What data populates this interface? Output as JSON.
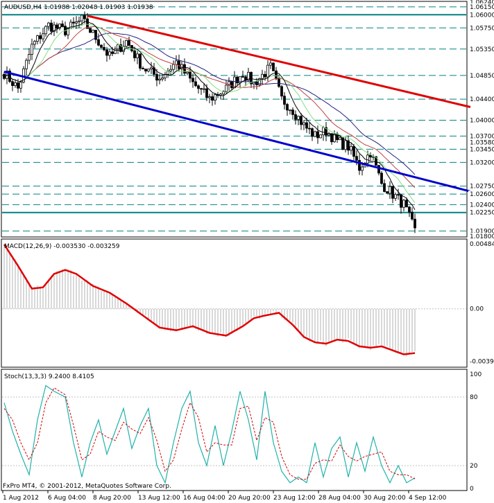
{
  "window": {
    "symbol_header": "AUDUSD,H4  1.01988 1.02048 1.01903 1.01938",
    "copyright": "FxPro MT4, © 2001-2012, MetaQuotes Software Corp."
  },
  "panels": {
    "macd_header": "MACD(12,26,9) -0.003530 -0.003259",
    "stoch_header": "Stoch(13,3,3) 9.2400 8.4105"
  },
  "colors": {
    "background": "#ffffff",
    "candles": "#000000",
    "level_lines": "#008080",
    "resistance_trendline": "#e00000",
    "support_trendline": "#0000cc",
    "macd_signal": "#e00000",
    "macd_histogram": "#b0b0b0",
    "stoch_main": "#20b2aa",
    "stoch_signal": "#d00000",
    "ma_black": "#000000",
    "ma_green": "#80e080",
    "ma_red": "#c04040",
    "ma_blue": "#202080"
  },
  "chart_data": [
    {
      "type": "candlestick",
      "symbol": "AUDUSD",
      "timeframe": "H4",
      "ylim": [
        1.018,
        1.0624
      ],
      "price_ticks": [
        "1.06240",
        "1.06150",
        "1.06000",
        "1.05750",
        "1.05350",
        "1.04850",
        "1.04400",
        "1.04000",
        "1.03700",
        "1.03580",
        "1.03450",
        "1.03200",
        "1.02750",
        "1.02600",
        "1.02400",
        "1.02250",
        "1.01900",
        "1.01800"
      ],
      "horizontal_levels": [
        1.0615,
        1.06,
        1.0575,
        1.0535,
        1.0485,
        1.044,
        1.04,
        1.037,
        1.0345,
        1.032,
        1.0275,
        1.026,
        1.024,
        1.0225,
        1.019
      ],
      "solid_levels": [
        1.06,
        1.0225
      ],
      "time_labels": [
        "1 Aug 2012",
        "6 Aug 04:00",
        "8 Aug 20:00",
        "13 Aug 12:00",
        "16 Aug 04:00",
        "20 Aug 20:00",
        "23 Aug 12:00",
        "28 Aug 04:00",
        "30 Aug 20:00",
        "4 Sep 12:00"
      ],
      "close_anchors": [
        [
          0,
          1.049
        ],
        [
          5,
          1.046
        ],
        [
          10,
          1.054
        ],
        [
          16,
          1.058
        ],
        [
          22,
          1.057
        ],
        [
          28,
          1.059
        ],
        [
          34,
          1.055
        ],
        [
          38,
          1.052
        ],
        [
          44,
          1.055
        ],
        [
          50,
          1.05
        ],
        [
          56,
          1.048
        ],
        [
          62,
          1.051
        ],
        [
          68,
          1.047
        ],
        [
          74,
          1.044
        ],
        [
          80,
          1.046
        ],
        [
          86,
          1.049
        ],
        [
          90,
          1.047
        ],
        [
          96,
          1.05
        ],
        [
          100,
          1.044
        ],
        [
          104,
          1.042
        ],
        [
          108,
          1.039
        ],
        [
          112,
          1.037
        ],
        [
          116,
          1.038
        ],
        [
          120,
          1.036
        ],
        [
          124,
          1.035
        ],
        [
          128,
          1.031
        ],
        [
          132,
          1.034
        ],
        [
          136,
          1.028
        ],
        [
          140,
          1.026
        ],
        [
          144,
          1.024
        ],
        [
          148,
          1.019
        ]
      ],
      "trendlines": [
        {
          "name": "resistance",
          "from": [
            30,
            1.0598
          ],
          "to": [
            168,
            1.0425
          ]
        },
        {
          "name": "support",
          "from": [
            0,
            1.0492
          ],
          "to": [
            168,
            1.0265
          ]
        }
      ]
    },
    {
      "type": "line",
      "title": "MACD(12,26,9)",
      "values_shown": [
        -0.00353,
        -0.003259
      ],
      "ylim": [
        -0.0042,
        0.00484
      ],
      "y_ticks": [
        "0.00484",
        "0.00",
        "-0.00392"
      ],
      "signal_anchors": [
        [
          0,
          0.0048
        ],
        [
          5,
          0.0032
        ],
        [
          10,
          0.0015
        ],
        [
          14,
          0.0016
        ],
        [
          18,
          0.0026
        ],
        [
          22,
          0.0029
        ],
        [
          26,
          0.0026
        ],
        [
          32,
          0.0017
        ],
        [
          38,
          0.0012
        ],
        [
          44,
          0.0004
        ],
        [
          50,
          -0.0005
        ],
        [
          56,
          -0.0014
        ],
        [
          62,
          -0.0016
        ],
        [
          68,
          -0.0013
        ],
        [
          74,
          -0.0018
        ],
        [
          80,
          -0.002
        ],
        [
          86,
          -0.0013
        ],
        [
          90,
          -0.0007
        ],
        [
          94,
          -0.0005
        ],
        [
          99,
          -0.0003
        ],
        [
          104,
          -0.0012
        ],
        [
          108,
          -0.0021
        ],
        [
          112,
          -0.0025
        ],
        [
          116,
          -0.0026
        ],
        [
          120,
          -0.0023
        ],
        [
          124,
          -0.0024
        ],
        [
          128,
          -0.0028
        ],
        [
          132,
          -0.0029
        ],
        [
          136,
          -0.0028
        ],
        [
          140,
          -0.0031
        ],
        [
          144,
          -0.0034
        ],
        [
          148,
          -0.0033
        ]
      ]
    },
    {
      "type": "line",
      "title": "Stoch(13,3,3)",
      "values_shown": [
        9.24,
        8.4105
      ],
      "ylim": [
        0,
        100
      ],
      "y_ticks": [
        "100",
        "80",
        "20",
        "0"
      ],
      "k_anchors": [
        [
          0,
          75
        ],
        [
          3,
          50
        ],
        [
          6,
          30
        ],
        [
          9,
          12
        ],
        [
          12,
          60
        ],
        [
          15,
          90
        ],
        [
          18,
          85
        ],
        [
          22,
          80
        ],
        [
          25,
          40
        ],
        [
          28,
          10
        ],
        [
          31,
          40
        ],
        [
          34,
          60
        ],
        [
          37,
          30
        ],
        [
          40,
          50
        ],
        [
          43,
          70
        ],
        [
          46,
          35
        ],
        [
          49,
          55
        ],
        [
          52,
          70
        ],
        [
          55,
          20
        ],
        [
          58,
          5
        ],
        [
          61,
          40
        ],
        [
          64,
          70
        ],
        [
          67,
          85
        ],
        [
          70,
          40
        ],
        [
          73,
          20
        ],
        [
          76,
          55
        ],
        [
          79,
          20
        ],
        [
          82,
          50
        ],
        [
          85,
          85
        ],
        [
          88,
          60
        ],
        [
          91,
          25
        ],
        [
          94,
          85
        ],
        [
          97,
          40
        ],
        [
          100,
          15
        ],
        [
          103,
          5
        ],
        [
          106,
          10
        ],
        [
          109,
          5
        ],
        [
          112,
          40
        ],
        [
          115,
          10
        ],
        [
          118,
          35
        ],
        [
          121,
          45
        ],
        [
          124,
          10
        ],
        [
          127,
          40
        ],
        [
          130,
          15
        ],
        [
          133,
          45
        ],
        [
          136,
          20
        ],
        [
          139,
          5
        ],
        [
          142,
          20
        ],
        [
          145,
          5
        ],
        [
          148,
          9.24
        ]
      ],
      "d_anchors": [
        [
          0,
          70
        ],
        [
          3,
          60
        ],
        [
          6,
          40
        ],
        [
          9,
          25
        ],
        [
          12,
          40
        ],
        [
          15,
          75
        ],
        [
          18,
          88
        ],
        [
          22,
          82
        ],
        [
          25,
          55
        ],
        [
          28,
          25
        ],
        [
          31,
          30
        ],
        [
          34,
          50
        ],
        [
          37,
          45
        ],
        [
          40,
          42
        ],
        [
          43,
          58
        ],
        [
          46,
          52
        ],
        [
          49,
          48
        ],
        [
          52,
          62
        ],
        [
          55,
          42
        ],
        [
          58,
          15
        ],
        [
          61,
          25
        ],
        [
          64,
          52
        ],
        [
          67,
          75
        ],
        [
          70,
          62
        ],
        [
          73,
          32
        ],
        [
          76,
          40
        ],
        [
          79,
          38
        ],
        [
          82,
          38
        ],
        [
          85,
          70
        ],
        [
          88,
          72
        ],
        [
          91,
          42
        ],
        [
          94,
          62
        ],
        [
          97,
          58
        ],
        [
          100,
          28
        ],
        [
          103,
          12
        ],
        [
          106,
          8
        ],
        [
          109,
          8
        ],
        [
          112,
          22
        ],
        [
          115,
          25
        ],
        [
          118,
          24
        ],
        [
          121,
          38
        ],
        [
          124,
          28
        ],
        [
          127,
          24
        ],
        [
          130,
          28
        ],
        [
          133,
          30
        ],
        [
          136,
          32
        ],
        [
          139,
          15
        ],
        [
          142,
          12
        ],
        [
          145,
          12
        ],
        [
          148,
          8.41
        ]
      ]
    }
  ]
}
